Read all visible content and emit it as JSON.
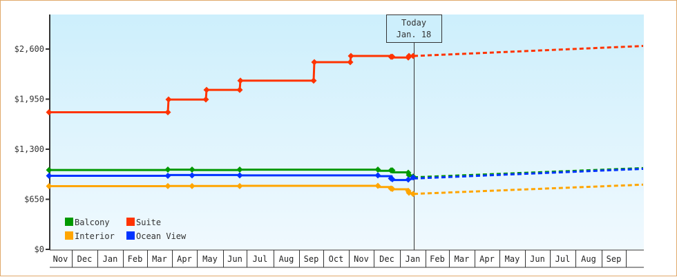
{
  "chart_data": {
    "type": "line",
    "title": "",
    "xlabel": "",
    "ylabel": "",
    "ylim": [
      0,
      3050
    ],
    "y_ticks": [
      {
        "value": 0,
        "label": "$0"
      },
      {
        "value": 650,
        "label": "$650"
      },
      {
        "value": 1300,
        "label": "$1,300"
      },
      {
        "value": 1950,
        "label": "$1,950"
      },
      {
        "value": 2600,
        "label": "$2,600"
      }
    ],
    "x_months": [
      "Nov",
      "Dec",
      "Jan",
      "Feb",
      "Mar",
      "Apr",
      "May",
      "Jun",
      "Jul",
      "Aug",
      "Sep",
      "Oct",
      "Nov",
      "Dec",
      "Jan",
      "Feb",
      "Mar",
      "Apr",
      "May",
      "Jun",
      "Jul",
      "Aug",
      "Sep"
    ],
    "x_month_edges": [
      70,
      103,
      140,
      177,
      212,
      248,
      284,
      322,
      356,
      395,
      432,
      467,
      504,
      540,
      578,
      615,
      649,
      686,
      722,
      759,
      795,
      832,
      870,
      905
    ],
    "grid": false,
    "today_marker": {
      "line1": "Today",
      "line2": "Jan. 18",
      "x": 598
    },
    "legend": {
      "position": "bottom-left",
      "entries": [
        {
          "name": "Balcony",
          "color": "#009900"
        },
        {
          "name": "Suite",
          "color": "#ff3300"
        },
        {
          "name": "Interior",
          "color": "#ffa500"
        },
        {
          "name": "Ocean View",
          "color": "#0033ff"
        }
      ]
    },
    "series": [
      {
        "name": "Suite",
        "color": "#ff3300",
        "points": [
          [
            70,
            1780
          ],
          [
            242,
            1780
          ],
          [
            243,
            1945
          ],
          [
            297,
            1945
          ],
          [
            298,
            2070
          ],
          [
            346,
            2070
          ],
          [
            347,
            2190
          ],
          [
            453,
            2190
          ],
          [
            454,
            2430
          ],
          [
            506,
            2430
          ],
          [
            507,
            2510
          ],
          [
            565,
            2510
          ],
          [
            566,
            2490
          ],
          [
            590,
            2490
          ],
          [
            591,
            2510
          ],
          [
            597,
            2510
          ]
        ],
        "markers": [
          [
            70,
            1780
          ],
          [
            242,
            1780
          ],
          [
            243,
            1945
          ],
          [
            297,
            1945
          ],
          [
            298,
            2070
          ],
          [
            346,
            2070
          ],
          [
            347,
            2190
          ],
          [
            453,
            2190
          ],
          [
            454,
            2430
          ],
          [
            506,
            2430
          ],
          [
            507,
            2510
          ],
          [
            565,
            2500
          ],
          [
            567,
            2500
          ],
          [
            590,
            2490
          ],
          [
            591,
            2510
          ],
          [
            597,
            2510
          ]
        ],
        "projection": [
          [
            598,
            2510
          ],
          [
            930,
            2640
          ]
        ]
      },
      {
        "name": "Balcony",
        "color": "#009900",
        "points": [
          [
            70,
            1030
          ],
          [
            242,
            1030
          ],
          [
            243,
            1035
          ],
          [
            277,
            1035
          ],
          [
            278,
            1030
          ],
          [
            346,
            1030
          ],
          [
            347,
            1035
          ],
          [
            546,
            1035
          ],
          [
            547,
            1020
          ],
          [
            566,
            1020
          ],
          [
            567,
            1000
          ],
          [
            590,
            1000
          ],
          [
            591,
            975
          ],
          [
            597,
            940
          ]
        ],
        "markers": [
          [
            70,
            1030
          ],
          [
            242,
            1035
          ],
          [
            277,
            1035
          ],
          [
            346,
            1035
          ],
          [
            546,
            1035
          ],
          [
            565,
            1025
          ],
          [
            567,
            1025
          ],
          [
            590,
            995
          ],
          [
            591,
            965
          ],
          [
            597,
            945
          ]
        ],
        "projection": [
          [
            598,
            935
          ],
          [
            930,
            1055
          ]
        ]
      },
      {
        "name": "Ocean View",
        "color": "#0033ff",
        "points": [
          [
            70,
            955
          ],
          [
            242,
            955
          ],
          [
            243,
            965
          ],
          [
            346,
            965
          ],
          [
            347,
            960
          ],
          [
            546,
            960
          ],
          [
            547,
            950
          ],
          [
            566,
            950
          ],
          [
            567,
            900
          ],
          [
            590,
            900
          ],
          [
            591,
            905
          ],
          [
            597,
            920
          ]
        ],
        "markers": [
          [
            70,
            955
          ],
          [
            242,
            955
          ],
          [
            277,
            960
          ],
          [
            346,
            960
          ],
          [
            546,
            960
          ],
          [
            565,
            920
          ],
          [
            567,
            910
          ],
          [
            590,
            905
          ],
          [
            597,
            935
          ]
        ],
        "projection": [
          [
            598,
            920
          ],
          [
            930,
            1045
          ]
        ]
      },
      {
        "name": "Interior",
        "color": "#ffa500",
        "points": [
          [
            70,
            820
          ],
          [
            242,
            820
          ],
          [
            243,
            822
          ],
          [
            346,
            822
          ],
          [
            347,
            825
          ],
          [
            546,
            825
          ],
          [
            547,
            810
          ],
          [
            566,
            810
          ],
          [
            567,
            780
          ],
          [
            590,
            780
          ],
          [
            591,
            730
          ],
          [
            597,
            720
          ]
        ],
        "markers": [
          [
            70,
            820
          ],
          [
            242,
            822
          ],
          [
            277,
            822
          ],
          [
            346,
            822
          ],
          [
            546,
            825
          ],
          [
            565,
            790
          ],
          [
            567,
            785
          ],
          [
            590,
            760
          ],
          [
            591,
            735
          ],
          [
            597,
            720
          ]
        ],
        "projection": [
          [
            598,
            720
          ],
          [
            930,
            840
          ]
        ]
      }
    ]
  }
}
